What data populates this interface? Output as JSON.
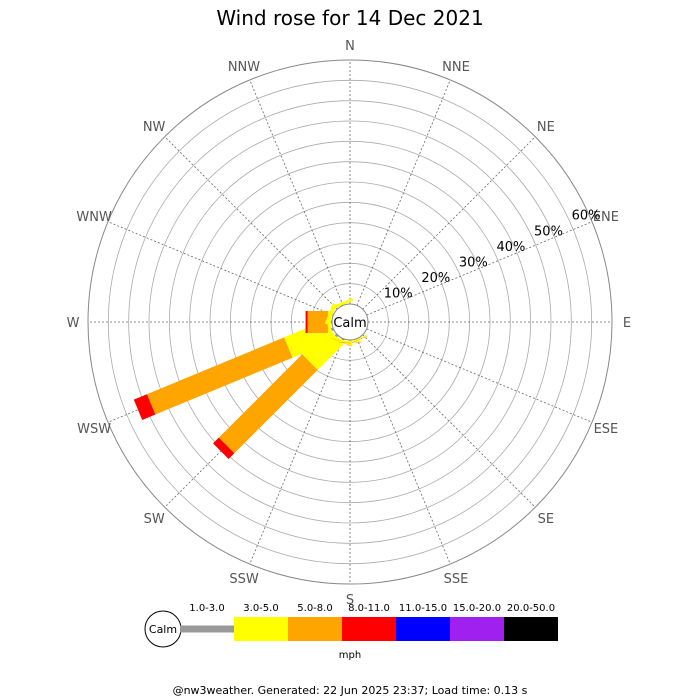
{
  "chart_data": {
    "type": "wind-rose",
    "title": "Wind rose for 14 Dec 2021",
    "directions": [
      "N",
      "NNE",
      "NE",
      "ENE",
      "E",
      "ESE",
      "SE",
      "SSE",
      "S",
      "SSW",
      "SW",
      "WSW",
      "W",
      "WNW",
      "NW",
      "NNW"
    ],
    "radial_ticks": [
      "10%",
      "20%",
      "30%",
      "40%",
      "50%",
      "60%"
    ],
    "radial_values": [
      10,
      20,
      30,
      40,
      50,
      60
    ],
    "r_max_percent": 60,
    "calm_label": "Calm",
    "speed_bins": [
      {
        "label": "1.0-3.0",
        "color": "#999999"
      },
      {
        "label": "3.0-5.0",
        "color": "#ffff00"
      },
      {
        "label": "5.0-8.0",
        "color": "#ffa500"
      },
      {
        "label": "8.0-11.0",
        "color": "#ff0000"
      },
      {
        "label": "11.0-15.0",
        "color": "#0000ff"
      },
      {
        "label": "15.0-20.0",
        "color": "#a020f0"
      },
      {
        "label": "20.0-50.0",
        "color": "#000000"
      }
    ],
    "units": "mph",
    "series": [
      {
        "direction": "WSW",
        "cumulative_percent": [
          0.5,
          12.0,
          48.5,
          52.0,
          52.0,
          52.0,
          52.0
        ]
      },
      {
        "direction": "SW",
        "cumulative_percent": [
          0.5,
          9.5,
          38.5,
          40.5,
          40.5,
          40.5,
          40.5
        ]
      },
      {
        "direction": "W",
        "cumulative_percent": [
          0.3,
          1.0,
          6.0,
          6.5,
          6.5,
          6.5,
          6.5
        ]
      },
      {
        "direction": "WNW",
        "cumulative_percent": [
          0.2,
          1.2,
          1.2,
          1.2,
          1.2,
          1.2,
          1.2
        ]
      },
      {
        "direction": "SSW",
        "cumulative_percent": [
          0.3,
          0.9,
          1.0,
          1.0,
          1.0,
          1.0,
          1.0
        ]
      },
      {
        "direction": "S",
        "cumulative_percent": [
          0.2,
          0.5,
          0.6,
          0.6,
          0.6,
          0.6,
          0.6
        ]
      },
      {
        "direction": "SSE",
        "cumulative_percent": [
          0.1,
          0.4,
          0.5,
          0.5,
          0.5,
          0.5,
          0.5
        ]
      },
      {
        "direction": "NNW",
        "cumulative_percent": [
          0.1,
          0.8,
          0.8,
          0.8,
          0.8,
          0.8,
          0.8
        ]
      }
    ]
  },
  "footer": "@nw3weather. Generated: 22 Jun 2025 23:37; Load time: 0.13 s"
}
